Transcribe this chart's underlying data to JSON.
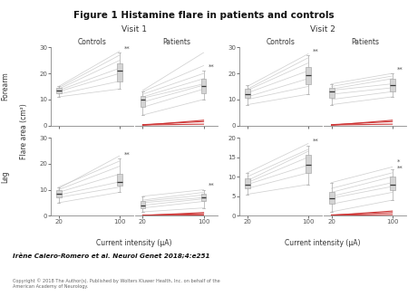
{
  "title": "Figure 1 Histamine flare in patients and controls",
  "citation": "Irène Calero-Romero et al. Neurol Genet 2018;4:e251",
  "copyright": "Copyright © 2018 The Author(s). Published by Wolters Kluwer Health, Inc. on behalf of the\nAmerican Academy of Neurology.",
  "x_label": "Current intensity (μA)",
  "y_label": "Flare area (cm²)",
  "row_labels": [
    "Forearm",
    "Leg"
  ],
  "visit_labels": [
    "Visit 1",
    "Visit 2"
  ],
  "group_labels": [
    "Controls",
    "Patients"
  ],
  "panels": {
    "v1_forearm_ctrl": {
      "box20": {
        "median": 13.5,
        "q1": 12.5,
        "q3": 14.5,
        "whislo": 11.0,
        "whishi": 15.0
      },
      "box100": {
        "median": 21.0,
        "q1": 17.0,
        "q3": 24.0,
        "whislo": 14.0,
        "whishi": 28.0
      },
      "lines": [
        [
          11.0,
          14.0
        ],
        [
          12.0,
          17.0
        ],
        [
          13.0,
          20.0
        ],
        [
          13.5,
          22.0
        ],
        [
          14.0,
          25.0
        ],
        [
          14.5,
          27.0
        ],
        [
          15.0,
          28.5
        ]
      ],
      "red_lines": [],
      "ylim": [
        0,
        30
      ],
      "yticks": [
        0,
        10,
        20,
        30
      ],
      "star": "**",
      "star2": null
    },
    "v1_forearm_pat": {
      "box20": {
        "median": 10.0,
        "q1": 7.0,
        "q3": 11.5,
        "whislo": 4.0,
        "whishi": 13.0
      },
      "box100": {
        "median": 15.0,
        "q1": 12.5,
        "q3": 18.0,
        "whislo": 10.0,
        "whishi": 21.0
      },
      "lines": [
        [
          4.0,
          10.0
        ],
        [
          7.0,
          14.0
        ],
        [
          9.0,
          15.5
        ],
        [
          10.5,
          16.0
        ],
        [
          11.0,
          18.0
        ],
        [
          12.0,
          20.0
        ],
        [
          13.0,
          23.0
        ],
        [
          13.5,
          28.0
        ]
      ],
      "red_lines": [
        [
          0.2,
          0.5
        ],
        [
          0.3,
          1.5
        ],
        [
          0.1,
          2.0
        ]
      ],
      "ylim": [
        0,
        30
      ],
      "yticks": [
        0,
        10,
        20,
        30
      ],
      "star": "**",
      "star2": null
    },
    "v1_leg_ctrl": {
      "box20": {
        "median": 8.5,
        "q1": 7.0,
        "q3": 10.0,
        "whislo": 5.0,
        "whishi": 11.0
      },
      "box100": {
        "median": 13.0,
        "q1": 11.5,
        "q3": 16.0,
        "whislo": 9.0,
        "whishi": 22.0
      },
      "lines": [
        [
          5.0,
          9.0
        ],
        [
          7.0,
          11.0
        ],
        [
          8.0,
          13.0
        ],
        [
          9.0,
          16.0
        ],
        [
          10.0,
          19.0
        ],
        [
          11.0,
          21.0
        ],
        [
          10.5,
          23.0
        ]
      ],
      "red_lines": [],
      "ylim": [
        0,
        30
      ],
      "yticks": [
        0,
        10,
        20,
        30
      ],
      "star": "**",
      "star2": null
    },
    "v1_leg_pat": {
      "box20": {
        "median": 4.0,
        "q1": 3.0,
        "q3": 5.5,
        "whislo": 1.5,
        "whishi": 7.5
      },
      "box100": {
        "median": 7.0,
        "q1": 5.5,
        "q3": 8.5,
        "whislo": 3.0,
        "whishi": 10.0
      },
      "lines": [
        [
          1.5,
          3.0
        ],
        [
          3.0,
          5.5
        ],
        [
          4.0,
          6.5
        ],
        [
          5.0,
          7.0
        ],
        [
          5.5,
          8.0
        ],
        [
          6.0,
          9.0
        ],
        [
          7.5,
          10.0
        ]
      ],
      "red_lines": [
        [
          0.1,
          0.3
        ],
        [
          0.2,
          0.8
        ],
        [
          0.1,
          1.2
        ]
      ],
      "ylim": [
        0,
        30
      ],
      "yticks": [
        0,
        10,
        20,
        30
      ],
      "star": "**",
      "star2": null
    },
    "v2_forearm_ctrl": {
      "box20": {
        "median": 12.0,
        "q1": 10.5,
        "q3": 14.0,
        "whislo": 8.0,
        "whishi": 15.5
      },
      "box100": {
        "median": 19.5,
        "q1": 16.0,
        "q3": 22.5,
        "whislo": 12.0,
        "whishi": 27.0
      },
      "lines": [
        [
          8.0,
          12.0
        ],
        [
          10.0,
          15.0
        ],
        [
          11.0,
          18.0
        ],
        [
          12.5,
          21.0
        ],
        [
          13.5,
          24.0
        ],
        [
          14.0,
          26.0
        ],
        [
          15.0,
          27.5
        ]
      ],
      "red_lines": [],
      "ylim": [
        0,
        30
      ],
      "yticks": [
        0,
        10,
        20,
        30
      ],
      "star": "**",
      "star2": null
    },
    "v2_forearm_pat": {
      "box20": {
        "median": 13.0,
        "q1": 10.5,
        "q3": 14.5,
        "whislo": 8.0,
        "whishi": 16.0
      },
      "box100": {
        "median": 15.5,
        "q1": 13.0,
        "q3": 18.0,
        "whislo": 11.0,
        "whishi": 20.0
      },
      "lines": [
        [
          8.0,
          11.0
        ],
        [
          10.0,
          13.0
        ],
        [
          12.0,
          14.5
        ],
        [
          13.5,
          16.0
        ],
        [
          14.0,
          18.0
        ],
        [
          15.0,
          19.0
        ],
        [
          16.0,
          20.0
        ]
      ],
      "red_lines": [
        [
          0.2,
          0.5
        ],
        [
          0.3,
          1.5
        ],
        [
          0.1,
          2.0
        ]
      ],
      "ylim": [
        0,
        30
      ],
      "yticks": [
        0,
        10,
        20,
        30
      ],
      "star": "**",
      "star2": null
    },
    "v2_leg_ctrl": {
      "box20": {
        "median": 8.0,
        "q1": 7.0,
        "q3": 9.5,
        "whislo": 5.5,
        "whishi": 11.0
      },
      "box100": {
        "median": 13.0,
        "q1": 11.0,
        "q3": 15.5,
        "whislo": 8.0,
        "whishi": 18.0
      },
      "lines": [
        [
          5.5,
          8.0
        ],
        [
          7.0,
          11.0
        ],
        [
          8.0,
          13.0
        ],
        [
          8.5,
          15.0
        ],
        [
          9.0,
          16.5
        ],
        [
          10.0,
          17.0
        ],
        [
          11.0,
          18.5
        ]
      ],
      "red_lines": [],
      "ylim": [
        0,
        20
      ],
      "yticks": [
        0,
        5,
        10,
        15,
        20
      ],
      "star": "**",
      "star2": null
    },
    "v2_leg_pat": {
      "box20": {
        "median": 4.5,
        "q1": 3.0,
        "q3": 6.0,
        "whislo": 1.0,
        "whishi": 8.5
      },
      "box100": {
        "median": 8.0,
        "q1": 6.5,
        "q3": 10.0,
        "whislo": 4.0,
        "whishi": 12.0
      },
      "lines": [
        [
          1.0,
          4.0
        ],
        [
          3.0,
          6.0
        ],
        [
          4.5,
          7.5
        ],
        [
          5.0,
          8.5
        ],
        [
          6.0,
          10.0
        ],
        [
          7.0,
          11.0
        ],
        [
          8.5,
          12.5
        ]
      ],
      "red_lines": [
        [
          0.1,
          0.3
        ],
        [
          0.2,
          0.8
        ],
        [
          0.1,
          1.2
        ]
      ],
      "ylim": [
        0,
        20
      ],
      "yticks": [
        0,
        5,
        10,
        15,
        20
      ],
      "star": "*",
      "star2": "**"
    }
  },
  "box_facecolor": "#d4d4d4",
  "box_edgecolor": "#aaaaaa",
  "median_color": "#333333",
  "line_color": "#cccccc",
  "red_color": "#cc3333",
  "star_color": "#555555",
  "bg_color": "#ffffff"
}
